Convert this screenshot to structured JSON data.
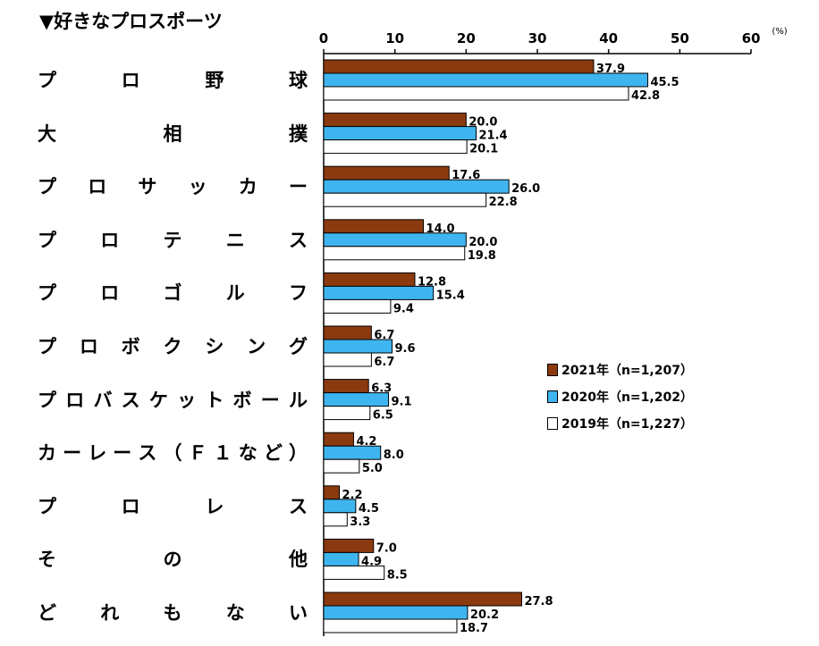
{
  "title": "▼好きなプロスポーツ",
  "chart_data": {
    "type": "bar",
    "orientation": "horizontal",
    "unit": "(%)",
    "xlim": [
      0,
      60
    ],
    "ticks": [
      "0",
      "10",
      "20",
      "30",
      "40",
      "50",
      "60"
    ],
    "categories": [
      "プロ野球",
      "大相撲",
      "プロサッカー",
      "プロテニス",
      "プロゴルフ",
      "プロボクシング",
      "プロバスケットボール",
      "カーレース（Ｆ１など）",
      "プロレス",
      "その他",
      "どれもない"
    ],
    "series": [
      {
        "name": "2021年（n=1,207）",
        "color": "#8B3A0F",
        "values": [
          37.9,
          20.0,
          17.6,
          14.0,
          12.8,
          6.7,
          6.3,
          4.2,
          2.2,
          7.0,
          27.8
        ]
      },
      {
        "name": "2020年（n=1,202）",
        "color": "#3FB5F0",
        "values": [
          45.5,
          21.4,
          26.0,
          20.0,
          15.4,
          9.6,
          9.1,
          8.0,
          4.5,
          4.9,
          20.2
        ]
      },
      {
        "name": "2019年（n=1,227）",
        "color": "#FFFFFF",
        "values": [
          42.8,
          20.1,
          22.8,
          19.8,
          9.4,
          6.7,
          6.5,
          5.0,
          3.3,
          8.5,
          18.7
        ]
      }
    ],
    "legend_position": "right",
    "grid": false
  }
}
